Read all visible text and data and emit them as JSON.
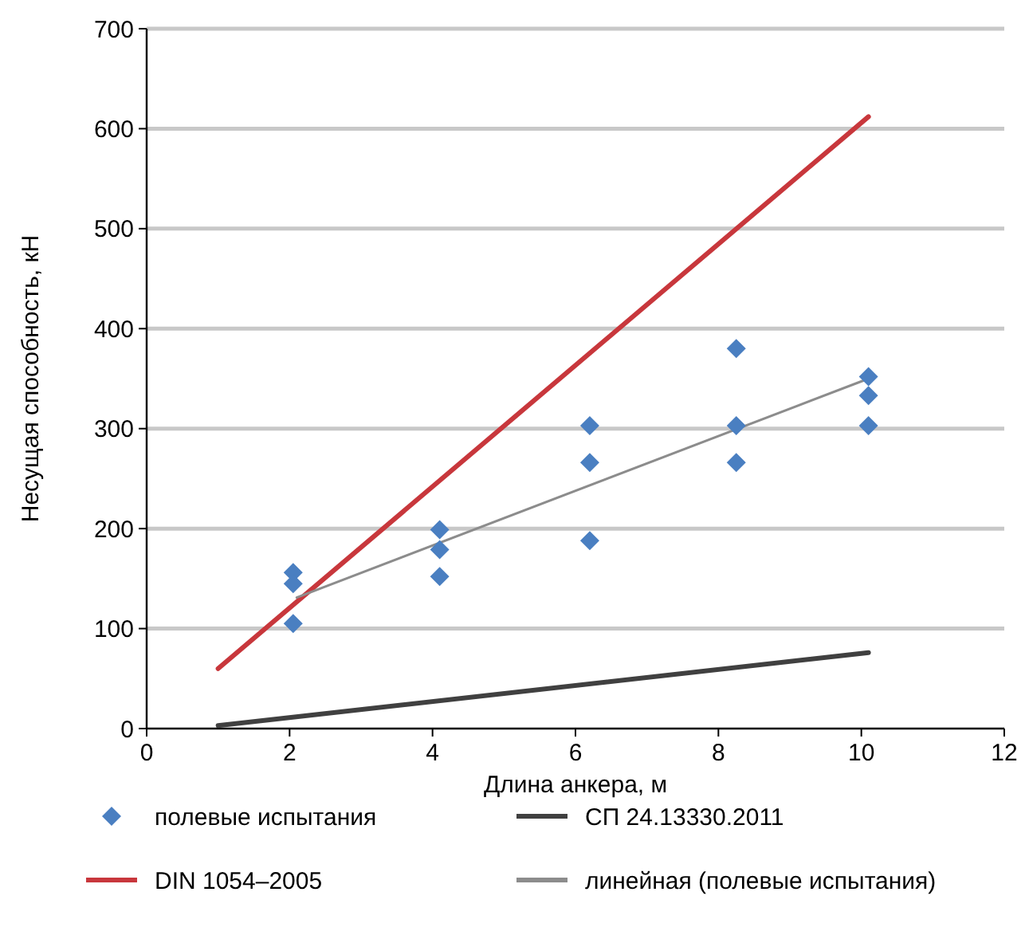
{
  "chart_data": {
    "type": "scatter",
    "xlabel": "Длина анкера, м",
    "ylabel": "Несущая способность, кН",
    "xlim": [
      0,
      12
    ],
    "xticks": [
      0,
      2,
      4,
      6,
      8,
      10,
      12
    ],
    "ylim": [
      0,
      700
    ],
    "yticks": [
      0,
      100,
      200,
      300,
      400,
      500,
      600,
      700
    ],
    "grid": "y",
    "legend": "bottom",
    "series": [
      {
        "name": "полевые испытания",
        "marker": "diamond",
        "color": "#4a7fc1",
        "x": [
          2.05,
          2.05,
          2.05,
          4.1,
          4.1,
          4.1,
          6.2,
          6.2,
          6.2,
          8.25,
          8.25,
          8.25,
          10.1,
          10.1,
          10.1
        ],
        "values": [
          156,
          145,
          105,
          199,
          179,
          152,
          303,
          266,
          188,
          380,
          303,
          266,
          352,
          333,
          303
        ]
      },
      {
        "name": "СП 24.13330.2011",
        "type": "line",
        "marker": "none",
        "color": "#404040",
        "x": [
          1,
          10.1
        ],
        "values": [
          3,
          76
        ]
      },
      {
        "name": "DIN 1054–2005",
        "type": "line",
        "marker": "none",
        "color": "#c8373c",
        "x": [
          1,
          10.1
        ],
        "values": [
          60,
          612
        ]
      },
      {
        "name": "линейная (полевые испытания)",
        "type": "line",
        "marker": "none",
        "color": "#8c8c8c",
        "x": [
          2.1,
          10.1
        ],
        "values": [
          131,
          350
        ]
      }
    ]
  }
}
